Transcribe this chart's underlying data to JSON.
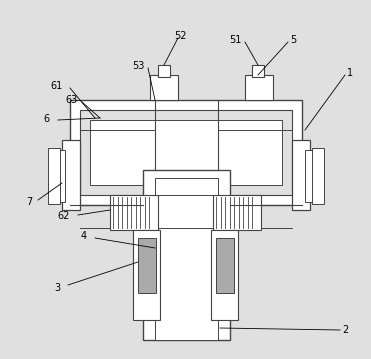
{
  "bg_color": "#e0e0e0",
  "line_color": "#444444",
  "white": "#ffffff",
  "hatch_color": "#aaaaaa",
  "gray_fill": "#c0c0c0"
}
